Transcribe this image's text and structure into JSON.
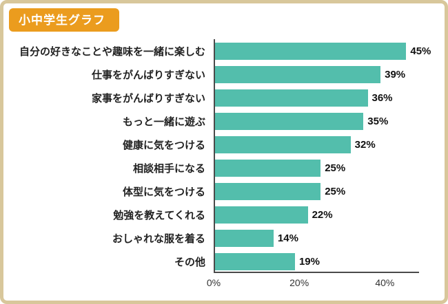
{
  "header": {
    "title": "小中学生グラフ"
  },
  "colors": {
    "bar": "#53beac",
    "frame_border": "#d8c79b",
    "badge_bg": "#eb9c1e",
    "axis": "#4a4a4a"
  },
  "chart_data": {
    "type": "bar",
    "orientation": "horizontal",
    "title": "小中学生グラフ",
    "xlabel": "",
    "ylabel": "",
    "categories": [
      "自分の好きなことや趣味を一緒に楽しむ",
      "仕事をがんばりすぎない",
      "家事をがんばりすぎない",
      "もっと一緒に遊ぶ",
      "健康に気をつける",
      "相談相手になる",
      "体型に気をつける",
      "勉強を教えてくれる",
      "おしゃれな服を着る",
      "その他"
    ],
    "values": [
      45,
      39,
      36,
      35,
      32,
      25,
      25,
      22,
      14,
      19
    ],
    "value_labels": [
      "45%",
      "39%",
      "36%",
      "35%",
      "32%",
      "25%",
      "25%",
      "22%",
      "14%",
      "19%"
    ],
    "x_ticks": [
      "0%",
      "20%",
      "40%"
    ],
    "x_tick_values": [
      0,
      20,
      40
    ],
    "xlim": [
      0,
      48
    ],
    "grid": false,
    "legend": false
  }
}
